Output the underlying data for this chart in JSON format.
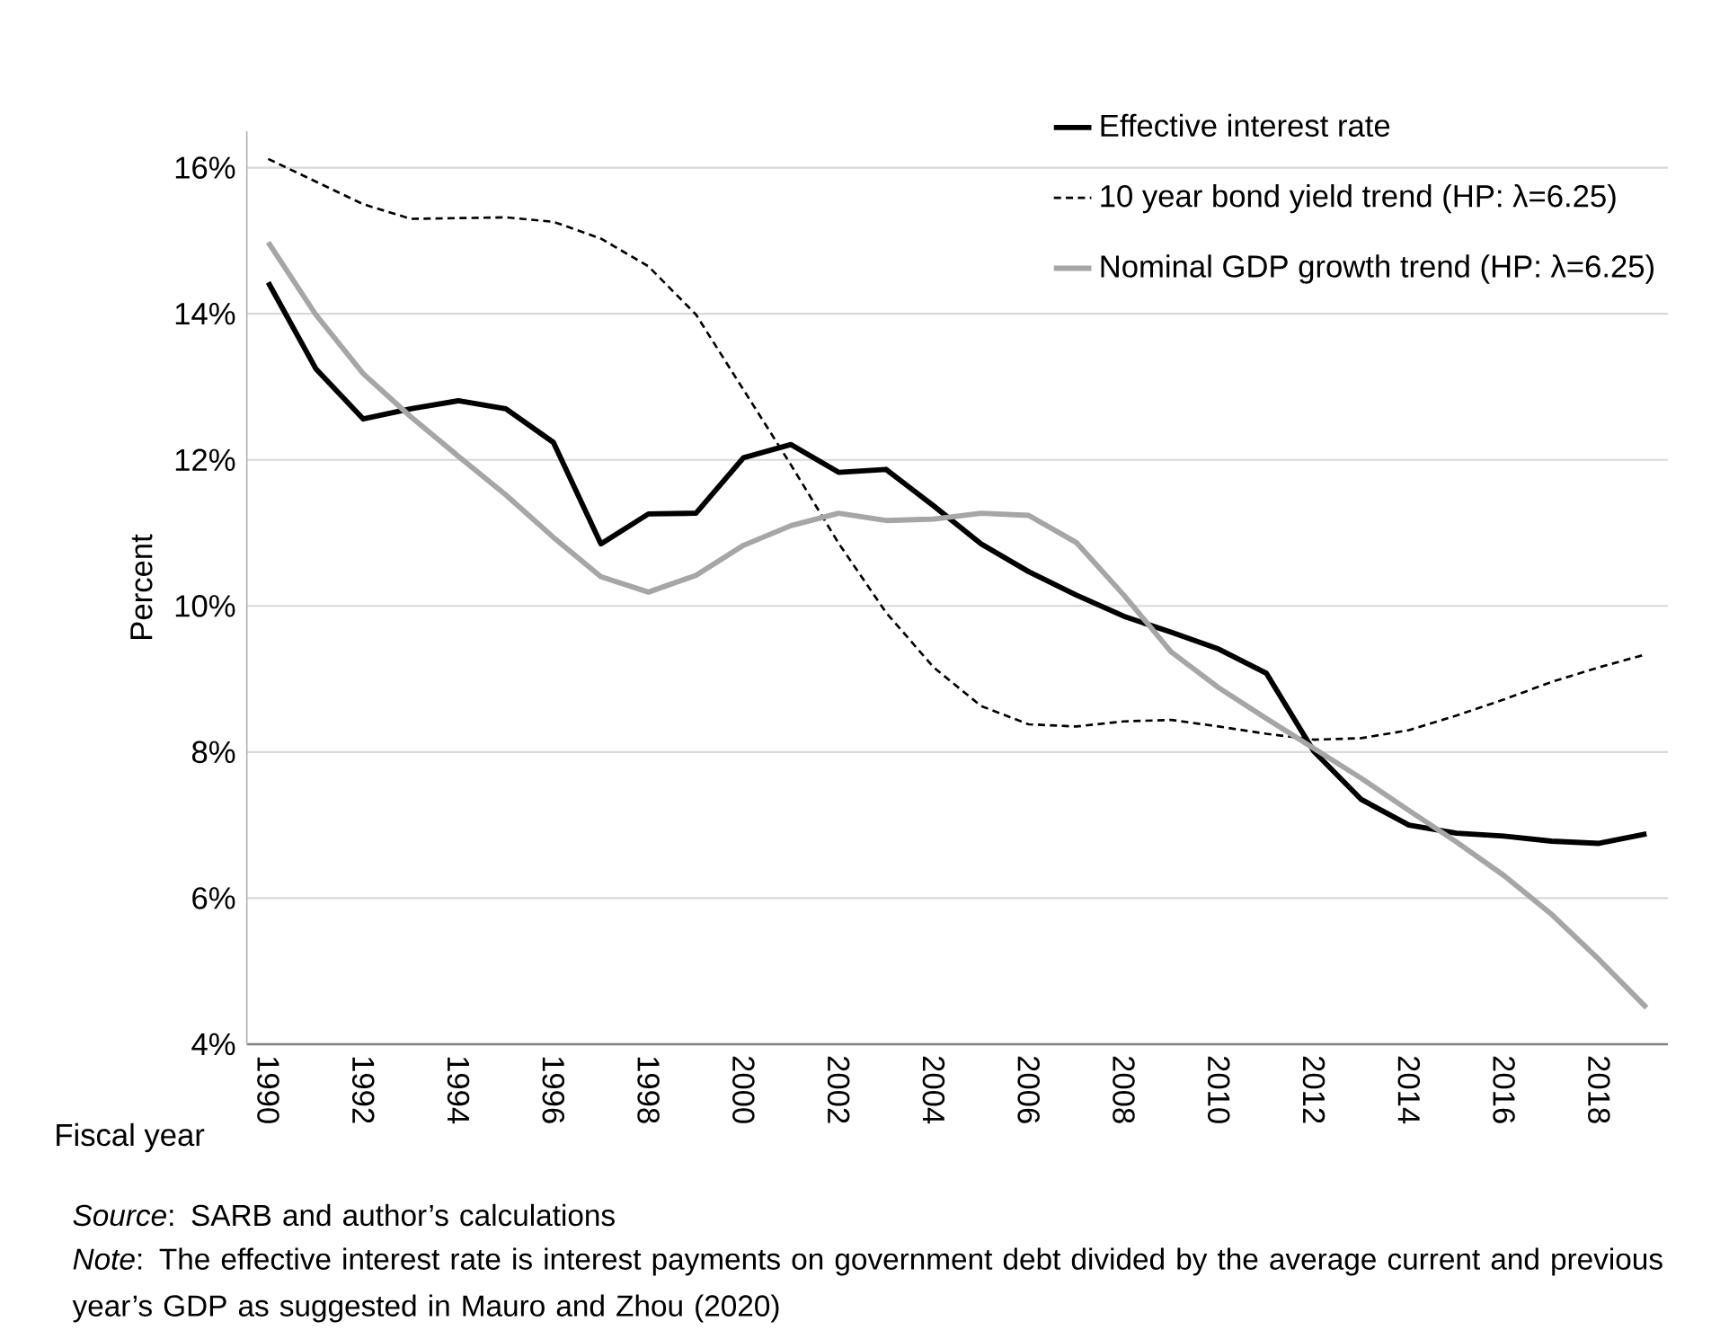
{
  "chart_data": {
    "type": "line",
    "xlabel": "Fiscal year",
    "ylabel": "Percent",
    "categories": [
      "1990",
      null,
      "1992",
      null,
      "1994",
      null,
      "1996",
      null,
      "1998",
      null,
      "2000",
      null,
      "2002",
      null,
      "2004",
      null,
      "2006",
      null,
      "2008",
      null,
      "2010",
      null,
      "2012",
      null,
      "2014",
      null,
      "2016",
      null,
      "2018",
      null
    ],
    "series": [
      {
        "name": "Effective interest rate",
        "color": "#000000",
        "line_style": "solid",
        "values": [
          14.43,
          13.25,
          12.56,
          12.7,
          12.81,
          12.7,
          12.24,
          10.85,
          11.26,
          11.27,
          12.03,
          12.21,
          11.83,
          11.87,
          11.37,
          10.85,
          10.47,
          10.15,
          9.86,
          9.64,
          9.41,
          9.08,
          8.01,
          7.35,
          7.0,
          6.89,
          6.85,
          6.78,
          6.75,
          6.88
        ]
      },
      {
        "name": "10 year bond yield trend (HP: λ=6.25)",
        "color": "#000000",
        "line_style": "dashed",
        "values": [
          16.12,
          15.81,
          15.5,
          15.3,
          15.31,
          15.32,
          15.26,
          15.03,
          14.65,
          13.99,
          12.96,
          11.93,
          10.86,
          9.91,
          9.16,
          8.63,
          8.38,
          8.35,
          8.42,
          8.44,
          8.35,
          8.25,
          8.17,
          8.19,
          8.3,
          8.5,
          8.72,
          8.96,
          9.16,
          9.34
        ]
      },
      {
        "name": "Nominal GDP growth trend (HP: λ=6.25)",
        "color": "#a6a6a6",
        "line_style": "solid",
        "values": [
          14.98,
          13.99,
          13.18,
          12.59,
          12.05,
          11.52,
          10.94,
          10.4,
          10.19,
          10.42,
          10.83,
          11.1,
          11.27,
          11.17,
          11.19,
          11.27,
          11.24,
          10.87,
          10.15,
          9.37,
          8.88,
          8.46,
          8.05,
          7.64,
          7.2,
          6.77,
          6.31,
          5.78,
          5.16,
          4.5
        ]
      }
    ],
    "ylim": [
      4,
      16.5
    ],
    "yticks": [
      {
        "value": 4,
        "label": "4%"
      },
      {
        "value": 6,
        "label": "6%"
      },
      {
        "value": 8,
        "label": "8%"
      },
      {
        "value": 10,
        "label": "10%"
      },
      {
        "value": 12,
        "label": "12%"
      },
      {
        "value": 14,
        "label": "14%"
      },
      {
        "value": 16,
        "label": "16%"
      }
    ],
    "grid": "y",
    "legend": "top right",
    "annotations": [
      "*Source*: SARB and author’s calculations",
      "*Note*: The effective interest rate is interest payments on government debt divided by the average current and previous year’s GDP as suggested in Mauro and Zhou (2020)"
    ]
  }
}
